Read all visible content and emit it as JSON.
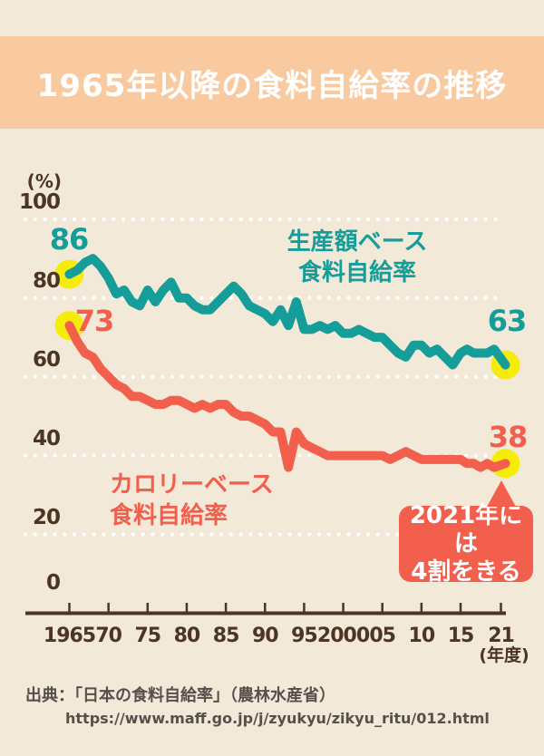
{
  "title": "1965年以降の食料自給率の推移",
  "chart_data": {
    "type": "line",
    "title": "1965年以降の食料自給率の推移",
    "y_unit_label": "(%)",
    "x_unit_label": "(年度)",
    "ylim": [
      0,
      100
    ],
    "y_ticks": [
      100,
      80,
      60,
      40,
      20,
      0
    ],
    "x_tick_labels": [
      "1965",
      "70",
      "75",
      "80",
      "85",
      "90",
      "95",
      "2000",
      "05",
      "10",
      "15",
      "21"
    ],
    "x_tick_years": [
      1965,
      1970,
      1975,
      1980,
      1985,
      1990,
      1995,
      2000,
      2005,
      2010,
      2015,
      2021
    ],
    "year_start": 1965,
    "year_end": 2021,
    "grid": "horizontal dotted white lines",
    "legend_position": "inline text labels beside each line",
    "series": [
      {
        "name": "生産額ベース食料自給率",
        "legend_line1": "生産額ベース",
        "legend_line2": "食料自給率",
        "color_key": "teal",
        "start_label": "86",
        "end_label": "63",
        "values": [
          86,
          87,
          89,
          90,
          88,
          85,
          81,
          82,
          79,
          78,
          82,
          79,
          82,
          84,
          80,
          80,
          78,
          77,
          77,
          79,
          81,
          83,
          81,
          78,
          77,
          76,
          74,
          77,
          73,
          79,
          72,
          72,
          73,
          72,
          73,
          71,
          71,
          72,
          71,
          70,
          70,
          68,
          66,
          65,
          68,
          68,
          66,
          67,
          65,
          63,
          66,
          67,
          66,
          66,
          66,
          67,
          63
        ]
      },
      {
        "name": "カロリーベース食料自給率",
        "legend_line1": "カロリーベース",
        "legend_line2": "食料自給率",
        "color_key": "red",
        "start_label": "73",
        "end_label": "38",
        "values": [
          73,
          69,
          66,
          65,
          62,
          60,
          58,
          57,
          55,
          55,
          54,
          53,
          53,
          54,
          54,
          53,
          52,
          53,
          52,
          53,
          53,
          51,
          50,
          50,
          49,
          48,
          46,
          46,
          37,
          46,
          43,
          42,
          41,
          40,
          40,
          40,
          40,
          40,
          40,
          40,
          40,
          39,
          40,
          41,
          40,
          39,
          39,
          39,
          39,
          39,
          39,
          38,
          38,
          37,
          38,
          37,
          38
        ]
      }
    ]
  },
  "callout": {
    "line1": "2021年には",
    "line2": "4割をきる"
  },
  "source": {
    "line1": "出典：「日本の食料自給率」（農林水産省）",
    "line2": "https://www.maff.go.jp/j/zyukyu/zikyu_ritu/012.html"
  },
  "colors": {
    "background": "#f2e9d8",
    "title_band": "#f9c99f",
    "teal": "#149d99",
    "red": "#f25f4d",
    "highlight_yellow": "#f5ec0a",
    "axis_brown": "#4c3524",
    "grid_white": "#ffffff",
    "title_text": "#ffffff",
    "source_text": "#56504a"
  }
}
